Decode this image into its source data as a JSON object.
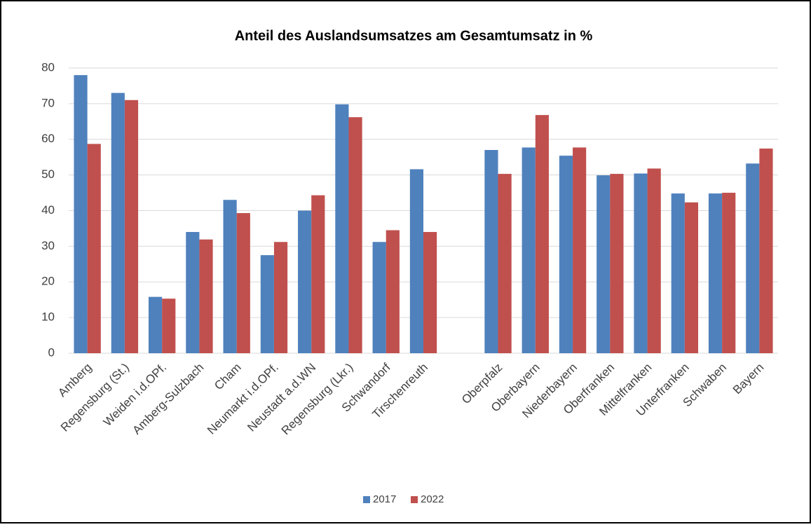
{
  "chart_data": {
    "type": "bar",
    "title": "Anteil des Auslandsumsatzes am Gesamtumsatz in %",
    "categories": [
      "Amberg",
      "Regensburg (St.)",
      "Weiden i.d.OPf.",
      "Amberg-Sulzbach",
      "Cham",
      "Neumarkt i.d.OPf.",
      "Neustadt a.d.WN",
      "Regensburg (Lkr.)",
      "Schwandorf",
      "Tirschenreuth",
      null,
      "Oberpfalz",
      "Oberbayern",
      "Niederbayern",
      "Oberfranken",
      "Mittelfranken",
      "Unterfranken",
      "Schwaben",
      "Bayern"
    ],
    "series": [
      {
        "name": "2017",
        "color": "#4f81bd",
        "values": [
          78,
          73,
          15.8,
          34,
          43,
          27.5,
          40,
          69.8,
          31.2,
          51.6,
          null,
          57,
          57.7,
          55.4,
          49.9,
          50.4,
          44.8,
          44.8,
          53.2
        ]
      },
      {
        "name": "2022",
        "color": "#c0504d",
        "values": [
          58.7,
          71,
          15.3,
          31.9,
          39.3,
          31.2,
          44.3,
          66.2,
          34.5,
          34,
          null,
          50.3,
          66.8,
          57.7,
          50.3,
          51.8,
          42.3,
          45,
          57.4
        ]
      }
    ],
    "ylim": [
      0,
      80
    ],
    "yticks": [
      0,
      10,
      20,
      30,
      40,
      50,
      60,
      70,
      80
    ],
    "grid": true,
    "legend": "bottom"
  }
}
